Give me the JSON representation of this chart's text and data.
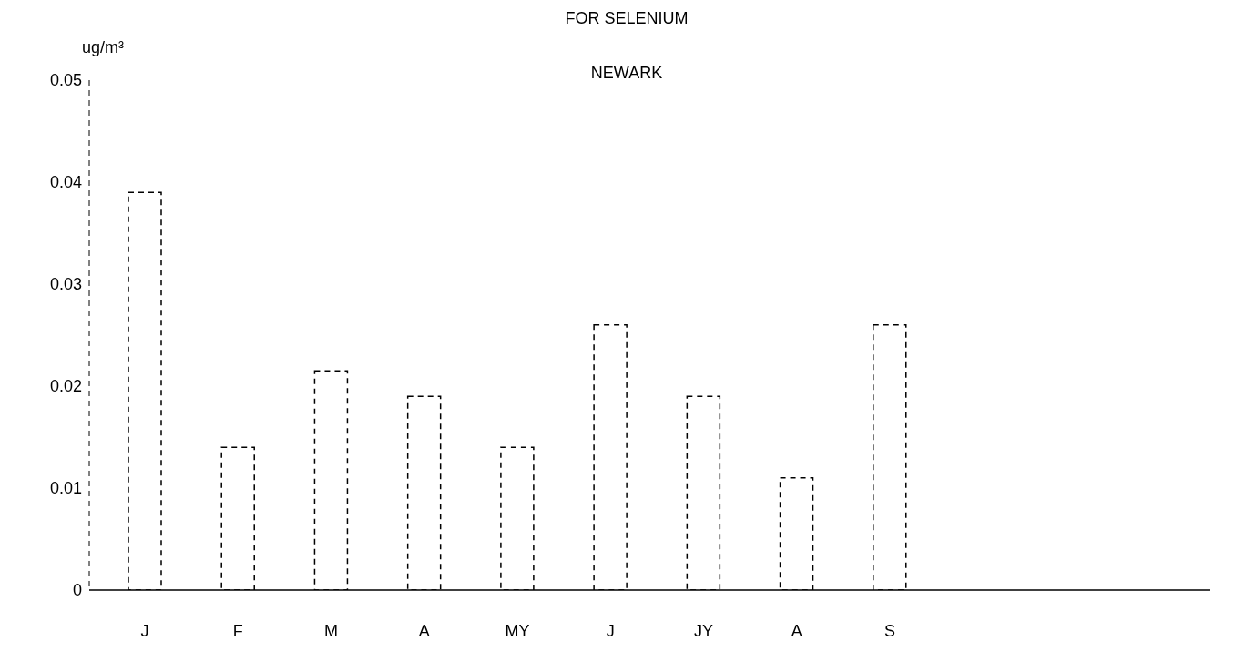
{
  "chart_data": {
    "type": "bar",
    "title": "FOR SELENIUM",
    "subtitle": "NEWARK",
    "ylabel": "ug/m³",
    "categories": [
      "J",
      "F",
      "M",
      "A",
      "MY",
      "J",
      "JY",
      "A",
      "S"
    ],
    "values": [
      0.039,
      0.014,
      0.0215,
      0.019,
      0.014,
      0.026,
      0.019,
      0.011,
      0.026
    ],
    "color": "#000000",
    "line_style": "dashed",
    "ylim": [
      0,
      0.05
    ],
    "yticks": [
      0,
      0.01,
      0.02,
      0.03,
      0.04,
      0.05
    ],
    "grid": false,
    "legend": false
  }
}
